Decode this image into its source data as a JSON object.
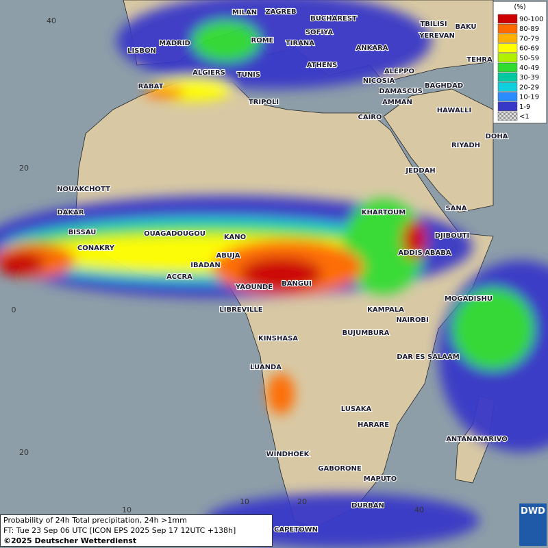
{
  "legend": {
    "unit": "(%)",
    "items": [
      {
        "label": "90-100",
        "color": "#cc0000"
      },
      {
        "label": "80-89",
        "color": "#ff6a00"
      },
      {
        "label": "70-79",
        "color": "#ffb000"
      },
      {
        "label": "60-69",
        "color": "#ffff00"
      },
      {
        "label": "50-59",
        "color": "#b0f000"
      },
      {
        "label": "40-49",
        "color": "#30dc30"
      },
      {
        "label": "30-39",
        "color": "#00c8a0"
      },
      {
        "label": "20-29",
        "color": "#10d0e0"
      },
      {
        "label": "10-19",
        "color": "#2a8cff"
      },
      {
        "label": "1-9",
        "color": "#3838c8"
      },
      {
        "label": "<1",
        "color": "#b0b0b0"
      }
    ]
  },
  "cities": [
    "MILAN",
    "ZAGREB",
    "BUCHAREST",
    "SOFIYA",
    "TBILISI",
    "BAKU",
    "YEREVAN",
    "MADRID",
    "ROME",
    "TIRANA",
    "ANKARA",
    "LISBON",
    "TEHRA",
    "ALGIERS",
    "TUNIS",
    "ATHENS",
    "ALEPPO",
    "RABAT",
    "NICOSIA",
    "BAGHDAD",
    "DAMASCUS",
    "AMMAN",
    "TRIPOLI",
    "HAWALLI",
    "CAIRO",
    "DOHA",
    "RIYADH",
    "NOUAKCHOTT",
    "JEDDAH",
    "DAKAR",
    "KHARTOUM",
    "SANA",
    "BISSAU",
    "OUAGADOUGOU",
    "KANO",
    "DJIBOUTI",
    "CONAKRY",
    "ABUJA",
    "ADDIS ABABA",
    "IBADAN",
    "ACCRA",
    "BANGUI",
    "YAOUNDE",
    "MOGADISHU",
    "LIBREVILLE",
    "KAMPALA",
    "NAIROBI",
    "BUJUMBURA",
    "KINSHASA",
    "DAR ES SALAAM",
    "LUANDA",
    "LUSAKA",
    "HARARE",
    "ANTANANARIVO",
    "WINDHOEK",
    "GABORONE",
    "MAPUTO",
    "DURBAN",
    "CAPETOWN"
  ],
  "grid_labels": [
    "40",
    "20",
    "0",
    "20",
    "10",
    "10",
    "20",
    "40"
  ],
  "footer": {
    "title": "Probability of 24h Total precipitation, 24h >1mm",
    "forecast": "FT: Tue 23 Sep 06 UTC [ICON EPS 2025 Sep 17 12UTC +138h]",
    "copyright": "©2025 Deutscher Wetterdienst"
  },
  "logo": "DWD"
}
